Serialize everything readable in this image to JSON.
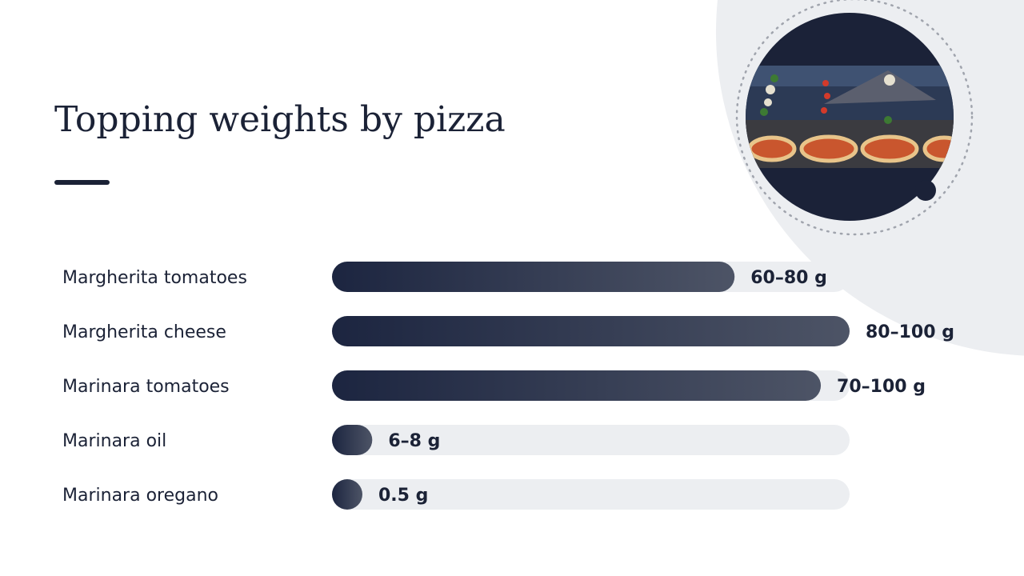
{
  "chart_data": {
    "type": "bar",
    "orientation": "horizontal",
    "title": "Topping weights by pizza",
    "categories": [
      "Margherita tomatoes",
      "Margherita cheese",
      "Marinara tomatoes",
      "Marinara oil",
      "Marinara oregano"
    ],
    "values": [
      70,
      90,
      85,
      7,
      0.5
    ],
    "value_labels": [
      "60–80 g",
      "80–100 g",
      "70–100 g",
      "6–8 g",
      "0.5 g"
    ],
    "xlim": [
      0,
      90
    ],
    "color": [
      "#1c2540",
      "#4d5466"
    ]
  }
}
